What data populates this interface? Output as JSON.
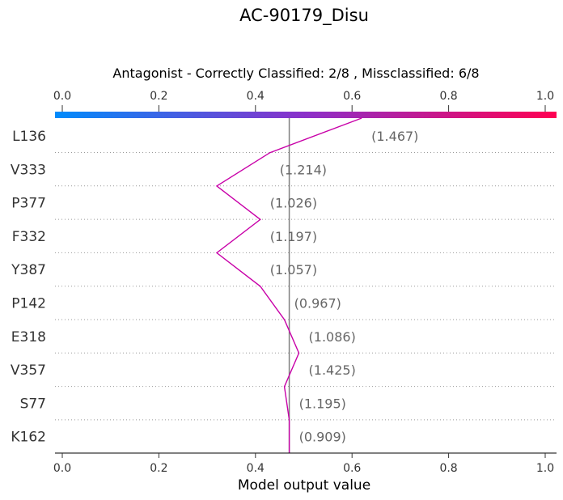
{
  "chart_data": {
    "type": "decision_plot",
    "title": "AC-90179_Disu",
    "subtitle": "Antagonist - Correctly Classified: 2/8 , Missclassified: 6/8",
    "xlabel": "Model output value",
    "xlim": [
      0.0,
      1.0
    ],
    "xticks": [
      "0.0",
      "0.2",
      "0.4",
      "0.6",
      "0.8",
      "1.0"
    ],
    "base_value": 0.47,
    "colorbar": {
      "from": "#008bfb",
      "mid": "#8c30c9",
      "to": "#ff0052"
    },
    "line_color": "#c800a8",
    "features": [
      {
        "name": "L136",
        "value_label": "(1.467)",
        "output": 0.62
      },
      {
        "name": "V333",
        "value_label": "(1.214)",
        "output": 0.43
      },
      {
        "name": "P377",
        "value_label": "(1.026)",
        "output": 0.32
      },
      {
        "name": "F332",
        "value_label": "(1.197)",
        "output": 0.41
      },
      {
        "name": "Y387",
        "value_label": "(1.057)",
        "output": 0.32
      },
      {
        "name": "P142",
        "value_label": "(0.967)",
        "output": 0.41
      },
      {
        "name": "E318",
        "value_label": "(1.086)",
        "output": 0.46
      },
      {
        "name": "V357",
        "value_label": "(1.425)",
        "output": 0.49
      },
      {
        "name": "S77",
        "value_label": "(1.195)",
        "output": 0.46
      },
      {
        "name": "K162",
        "value_label": "(0.909)",
        "output": 0.47
      }
    ]
  }
}
